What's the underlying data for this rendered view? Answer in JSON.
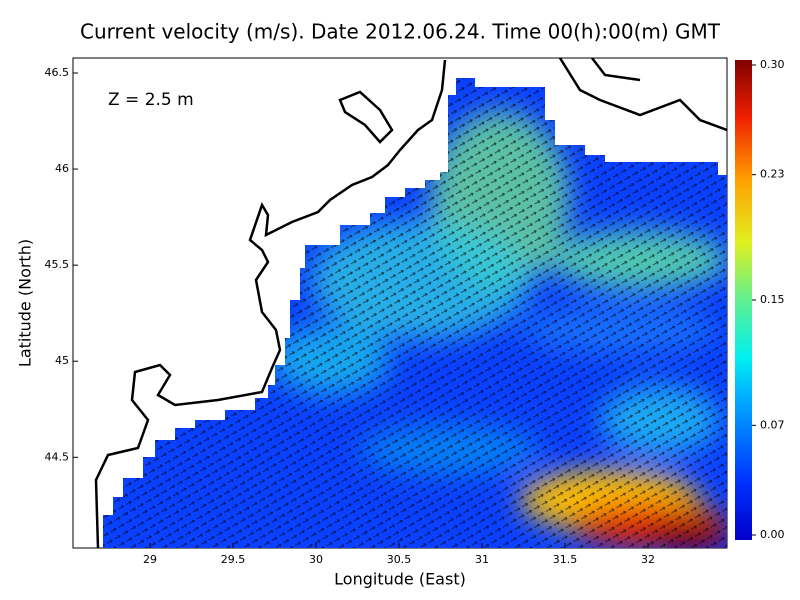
{
  "chart_data": {
    "type": "map",
    "title": "Current velocity (m/s). Date 2012.06.24. Time 00(h):00(m) GMT",
    "annotation": "Z = 2.5 m",
    "xlabel": "Longitude (East)",
    "ylabel": "Latitude (North)",
    "xlim": [
      28.536,
      32.476
    ],
    "ylim": [
      44.028,
      46.578
    ],
    "xticks": [
      29,
      29.5,
      30,
      30.5,
      31,
      31.5,
      32
    ],
    "yticks": [
      44.5,
      45,
      45.5,
      46,
      46.5
    ],
    "colorbar": {
      "lim": [
        0,
        0.3
      ],
      "ticks": [
        {
          "value": 0,
          "label": "0.00"
        },
        {
          "value": 0.07,
          "label": "0.07"
        },
        {
          "value": 0.15,
          "label": "0.15"
        },
        {
          "value": 0.23,
          "label": "0.23"
        },
        {
          "value": 0.3,
          "label": "0.30"
        }
      ]
    }
  }
}
